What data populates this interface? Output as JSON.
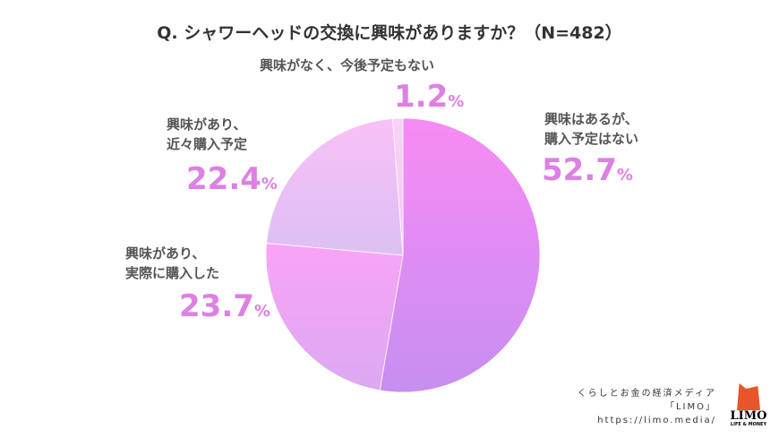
{
  "chart_data": {
    "type": "pie",
    "title": "Q. シャワーヘッドの交換に興味がありますか？（N=482）",
    "slices": [
      {
        "label_lines": [
          "興味はあるが、",
          "購入予定はない"
        ],
        "value": 52.7,
        "display": "52.7",
        "color_top": "#f78bf5",
        "color_bottom": "#c78ef0"
      },
      {
        "label_lines": [
          "興味があり、",
          "実際に購入した"
        ],
        "value": 23.7,
        "display": "23.7",
        "color_top": "#f9a3f6",
        "color_bottom": "#dca9f1"
      },
      {
        "label_lines": [
          "興味があり、",
          "近々購入予定"
        ],
        "value": 22.4,
        "display": "22.4",
        "color_top": "#f8c0f7",
        "color_bottom": "#dcc0f3"
      },
      {
        "label_lines": [
          "興味がなく、今後予定もない"
        ],
        "value": 1.2,
        "display": "1.2",
        "color_top": "#f9d2f9",
        "color_bottom": "#f0c8f5"
      }
    ],
    "unit": "%"
  },
  "credit": {
    "line1": "くらしとお金の経済メディア",
    "line2": "「LIMO」",
    "line3": "https://limo.media/"
  },
  "logo": {
    "name": "LIMO",
    "tagline": "LIFE & MONEY"
  }
}
